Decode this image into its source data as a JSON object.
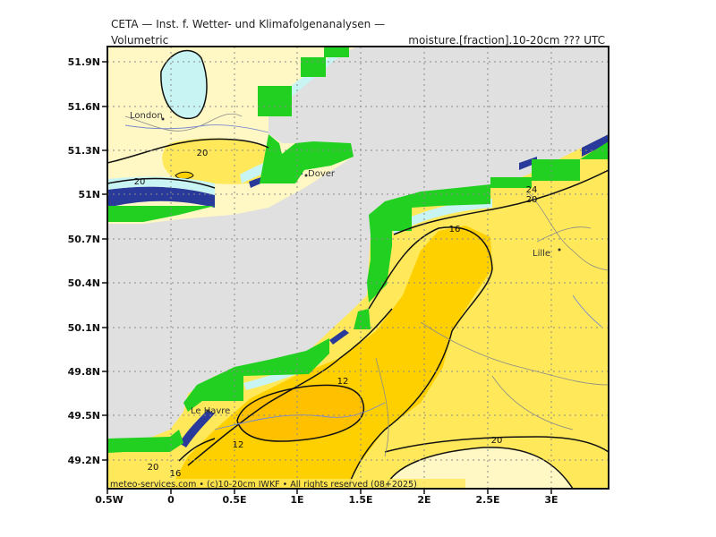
{
  "header": {
    "title": "CETA — Inst. f. Wetter- und Klimafolgenanalysen —",
    "left_label": "Volumetric",
    "right_label": "moisture.[fraction].10-20cm ??? UTC"
  },
  "footer": {
    "credit": "meteo-services.com • (c)10-20cm IWKF • All rights reserved (08+2025)"
  },
  "map": {
    "lat_ticks": [
      "51.9N",
      "51.6N",
      "51.3N",
      "51N",
      "50.7N",
      "50.4N",
      "50.1N",
      "49.8N",
      "49.5N",
      "49.2N"
    ],
    "lon_ticks": [
      "0.5W",
      "0",
      "0.5E",
      "1E",
      "1.5E",
      "2E",
      "2.5E",
      "3E"
    ],
    "cities": [
      {
        "name": "London"
      },
      {
        "name": "Dover"
      },
      {
        "name": "Lille"
      },
      {
        "name": "Le Havre"
      }
    ],
    "contour_labels": [
      "20",
      "20",
      "24",
      "20",
      "16",
      "12",
      "12",
      "20",
      "20",
      "16"
    ],
    "colors": {
      "sea": "#e0e0e0",
      "land_pale": "#fff8c4",
      "land_yellow": "#ffe95a",
      "land_gold": "#ffd000",
      "land_orange": "#ffc000",
      "cyan": "#c8f4f4",
      "green_mask": "#22d022",
      "blue_band": "#2a3a9a"
    }
  }
}
